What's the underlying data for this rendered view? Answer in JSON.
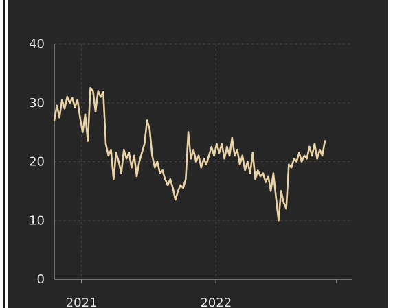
{
  "colors": {
    "background": "#262626",
    "series": "#e9d3a6",
    "grid": "#4a4a4a",
    "axis": "#8a8a8a",
    "tick_text": "#e8e8e8"
  },
  "chart_data": {
    "type": "line",
    "title": "",
    "xlabel": "",
    "ylabel": "",
    "ylim": [
      0,
      40
    ],
    "xlim": [
      "2020-10-19",
      "2023-01-05"
    ],
    "y_ticks": [
      "0",
      "10",
      "20",
      "30",
      "40"
    ],
    "x_ticks": [
      {
        "label": "2021",
        "date": "2021-01-01"
      },
      {
        "label": "2022",
        "date": "2022-01-01"
      }
    ],
    "grid": true,
    "legend": "none",
    "series": [
      {
        "values": [
          [
            "2020-10-19",
            27.0
          ],
          [
            "2020-10-26",
            29.5
          ],
          [
            "2020-11-02",
            27.5
          ],
          [
            "2020-11-09",
            30.5
          ],
          [
            "2020-11-16",
            29.0
          ],
          [
            "2020-11-23",
            31.0
          ],
          [
            "2020-11-30",
            30.0
          ],
          [
            "2020-12-07",
            30.8
          ],
          [
            "2020-12-14",
            29.2
          ],
          [
            "2020-12-21",
            30.5
          ],
          [
            "2020-12-28",
            27.5
          ],
          [
            "2021-01-04",
            25.0
          ],
          [
            "2021-01-11",
            28.0
          ],
          [
            "2021-01-18",
            23.5
          ],
          [
            "2021-01-25",
            32.5
          ],
          [
            "2021-02-01",
            32.0
          ],
          [
            "2021-02-08",
            28.5
          ],
          [
            "2021-02-15",
            32.0
          ],
          [
            "2021-02-22",
            31.0
          ],
          [
            "2021-03-01",
            31.8
          ],
          [
            "2021-03-08",
            23.0
          ],
          [
            "2021-03-15",
            21.0
          ],
          [
            "2021-03-22",
            22.0
          ],
          [
            "2021-03-29",
            17.0
          ],
          [
            "2021-04-05",
            21.5
          ],
          [
            "2021-04-12",
            20.0
          ],
          [
            "2021-04-19",
            18.0
          ],
          [
            "2021-04-26",
            22.0
          ],
          [
            "2021-05-03",
            20.5
          ],
          [
            "2021-05-10",
            21.5
          ],
          [
            "2021-05-17",
            19.0
          ],
          [
            "2021-05-24",
            21.0
          ],
          [
            "2021-05-31",
            17.5
          ],
          [
            "2021-06-07",
            20.0
          ],
          [
            "2021-06-14",
            21.5
          ],
          [
            "2021-06-21",
            23.0
          ],
          [
            "2021-06-28",
            27.0
          ],
          [
            "2021-07-05",
            25.5
          ],
          [
            "2021-07-12",
            21.0
          ],
          [
            "2021-07-19",
            19.0
          ],
          [
            "2021-07-26",
            20.0
          ],
          [
            "2021-08-02",
            18.0
          ],
          [
            "2021-08-09",
            18.5
          ],
          [
            "2021-08-16",
            17.0
          ],
          [
            "2021-08-23",
            16.0
          ],
          [
            "2021-08-30",
            17.0
          ],
          [
            "2021-09-06",
            15.5
          ],
          [
            "2021-09-13",
            13.5
          ],
          [
            "2021-09-20",
            15.0
          ],
          [
            "2021-09-27",
            16.0
          ],
          [
            "2021-10-04",
            15.5
          ],
          [
            "2021-10-11",
            17.0
          ],
          [
            "2021-10-18",
            25.0
          ],
          [
            "2021-10-25",
            20.5
          ],
          [
            "2021-11-01",
            22.0
          ],
          [
            "2021-11-08",
            20.0
          ],
          [
            "2021-11-15",
            21.0
          ],
          [
            "2021-11-22",
            19.0
          ],
          [
            "2021-11-29",
            20.5
          ],
          [
            "2021-12-06",
            19.5
          ],
          [
            "2021-12-13",
            21.0
          ],
          [
            "2021-12-20",
            22.5
          ],
          [
            "2021-12-27",
            21.0
          ],
          [
            "2022-01-03",
            23.0
          ],
          [
            "2022-01-10",
            21.5
          ],
          [
            "2022-01-17",
            23.0
          ],
          [
            "2022-01-24",
            20.5
          ],
          [
            "2022-01-31",
            22.5
          ],
          [
            "2022-02-07",
            21.0
          ],
          [
            "2022-02-14",
            24.0
          ],
          [
            "2022-02-21",
            21.0
          ],
          [
            "2022-02-28",
            22.0
          ],
          [
            "2022-03-07",
            19.5
          ],
          [
            "2022-03-14",
            21.0
          ],
          [
            "2022-03-21",
            18.5
          ],
          [
            "2022-03-28",
            20.0
          ],
          [
            "2022-04-04",
            18.0
          ],
          [
            "2022-04-11",
            21.5
          ],
          [
            "2022-04-18",
            17.0
          ],
          [
            "2022-04-25",
            18.5
          ],
          [
            "2022-05-02",
            17.5
          ],
          [
            "2022-05-09",
            18.0
          ],
          [
            "2022-05-16",
            16.5
          ],
          [
            "2022-05-23",
            17.5
          ],
          [
            "2022-05-30",
            15.0
          ],
          [
            "2022-06-06",
            18.0
          ],
          [
            "2022-06-13",
            14.0
          ],
          [
            "2022-06-20",
            10.0
          ],
          [
            "2022-06-27",
            15.0
          ],
          [
            "2022-07-04",
            13.0
          ],
          [
            "2022-07-11",
            12.0
          ],
          [
            "2022-07-18",
            19.5
          ],
          [
            "2022-07-25",
            19.0
          ],
          [
            "2022-08-01",
            20.5
          ],
          [
            "2022-08-08",
            20.0
          ],
          [
            "2022-08-15",
            21.5
          ],
          [
            "2022-08-22",
            20.0
          ],
          [
            "2022-08-29",
            21.0
          ],
          [
            "2022-09-05",
            20.5
          ],
          [
            "2022-09-12",
            22.5
          ],
          [
            "2022-09-19",
            21.0
          ],
          [
            "2022-09-26",
            23.0
          ],
          [
            "2022-10-03",
            20.5
          ],
          [
            "2022-10-10",
            22.0
          ],
          [
            "2022-10-17",
            21.0
          ],
          [
            "2022-10-24",
            23.5
          ]
        ]
      }
    ]
  }
}
